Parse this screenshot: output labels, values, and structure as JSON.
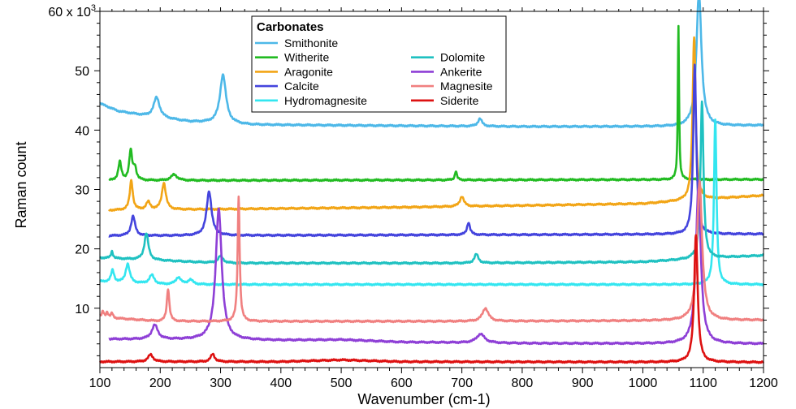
{
  "chart_data": {
    "type": "line",
    "title": "",
    "xlabel": "Wavenumber (cm-1)",
    "ylabel": "Raman count",
    "xlim": [
      100,
      1200
    ],
    "ylim": [
      0,
      60000
    ],
    "x_ticks": [
      100,
      200,
      300,
      400,
      500,
      600,
      700,
      800,
      900,
      1000,
      1100,
      1200
    ],
    "y_ticks": [
      {
        "value": 10000,
        "label": "10"
      },
      {
        "value": 20000,
        "label": "20"
      },
      {
        "value": 30000,
        "label": "30"
      },
      {
        "value": 40000,
        "label": "40"
      },
      {
        "value": 50000,
        "label": "50"
      },
      {
        "value": 60000,
        "label": "60 x 10",
        "sup": "3"
      }
    ],
    "grid": false,
    "legend": {
      "title": "Carbonates",
      "placement": "top-center"
    },
    "series": [
      {
        "name": "Smithonite",
        "color": "#4db8e8",
        "xmin": 100,
        "xmax": 1200,
        "baseline": [
          [
            100,
            44500
          ],
          [
            130,
            43200
          ],
          [
            180,
            42300
          ],
          [
            250,
            41400
          ],
          [
            350,
            40900
          ],
          [
            800,
            40600
          ],
          [
            1050,
            40600
          ],
          [
            1200,
            40800
          ]
        ],
        "peaks": [
          [
            194,
            3400,
            6
          ],
          [
            304,
            8200,
            6
          ],
          [
            730,
            1300,
            4
          ],
          [
            1093,
            22500,
            5
          ]
        ]
      },
      {
        "name": "Witherite",
        "color": "#22bb22",
        "xmin": 115,
        "xmax": 1200,
        "baseline": [
          [
            115,
            31500
          ],
          [
            1200,
            31700
          ]
        ],
        "peaks": [
          [
            133,
            3100,
            3
          ],
          [
            151,
            4900,
            3
          ],
          [
            158,
            2000,
            3
          ],
          [
            223,
            1000,
            6
          ],
          [
            690,
            1500,
            2
          ],
          [
            1059,
            26000,
            1.2
          ]
        ]
      },
      {
        "name": "Aragonite",
        "color": "#f2a516",
        "xmin": 115,
        "xmax": 1200,
        "baseline": [
          [
            115,
            26500
          ],
          [
            600,
            27000
          ],
          [
            1000,
            27600
          ],
          [
            1200,
            29000
          ]
        ],
        "peaks": [
          [
            152,
            5000,
            3
          ],
          [
            180,
            1300,
            4
          ],
          [
            206,
            4500,
            4
          ],
          [
            700,
            1700,
            4
          ],
          [
            1085,
            27500,
            3
          ]
        ]
      },
      {
        "name": "Calcite",
        "color": "#4444dd",
        "xmin": 115,
        "xmax": 1200,
        "baseline": [
          [
            115,
            22200
          ],
          [
            1200,
            22500
          ]
        ],
        "peaks": [
          [
            155,
            3300,
            4
          ],
          [
            281,
            7400,
            5
          ],
          [
            711,
            2100,
            3
          ],
          [
            1086,
            28500,
            3
          ]
        ]
      },
      {
        "name": "Hydromagnesite",
        "color": "#33e6f0",
        "xmin": 100,
        "xmax": 1200,
        "baseline": [
          [
            100,
            14500
          ],
          [
            200,
            14000
          ],
          [
            1000,
            14000
          ],
          [
            1200,
            14000
          ]
        ],
        "peaks": [
          [
            121,
            2000,
            3
          ],
          [
            146,
            3200,
            4
          ],
          [
            186,
            1500,
            5
          ],
          [
            230,
            1200,
            5
          ],
          [
            250,
            800,
            5
          ],
          [
            1120,
            27800,
            2.5
          ]
        ]
      },
      {
        "name": "Dolomite",
        "color": "#1fc1c1",
        "xmin": 100,
        "xmax": 1200,
        "baseline": [
          [
            100,
            18500
          ],
          [
            300,
            17600
          ],
          [
            700,
            17600
          ],
          [
            1000,
            17800
          ],
          [
            1200,
            18900
          ]
        ],
        "peaks": [
          [
            120,
            1200,
            2
          ],
          [
            177,
            4500,
            4
          ],
          [
            300,
            1200,
            5
          ],
          [
            724,
            1500,
            4
          ],
          [
            1098,
            26500,
            3
          ]
        ]
      },
      {
        "name": "Ankerite",
        "color": "#8e3fd6",
        "xmin": 115,
        "xmax": 1200,
        "baseline": [
          [
            115,
            4800
          ],
          [
            400,
            4600
          ],
          [
            500,
            4700
          ],
          [
            600,
            4300
          ],
          [
            800,
            4100
          ],
          [
            1200,
            4000
          ]
        ],
        "peaks": [
          [
            191,
            2400,
            6
          ],
          [
            297,
            22000,
            6
          ],
          [
            731,
            1500,
            8
          ],
          [
            1092,
            26000,
            5
          ]
        ]
      },
      {
        "name": "Magnesite",
        "color": "#f08080",
        "xmin": 100,
        "xmax": 1200,
        "baseline": [
          [
            100,
            8500
          ],
          [
            200,
            7800
          ],
          [
            700,
            7800
          ],
          [
            1000,
            7900
          ],
          [
            1200,
            8000
          ]
        ],
        "peaks": [
          [
            105,
            1000,
            2
          ],
          [
            112,
            900,
            2
          ],
          [
            120,
            800,
            2
          ],
          [
            213,
            5500,
            2.5
          ],
          [
            330,
            21000,
            2
          ],
          [
            739,
            2200,
            6
          ],
          [
            1094,
            23500,
            5
          ]
        ]
      },
      {
        "name": "Siderite",
        "color": "#dd1111",
        "xmin": 100,
        "xmax": 1200,
        "baseline": [
          [
            100,
            1000
          ],
          [
            400,
            1000
          ],
          [
            500,
            1300
          ],
          [
            600,
            1000
          ],
          [
            1200,
            900
          ]
        ],
        "peaks": [
          [
            184,
            1200,
            5
          ],
          [
            287,
            1300,
            4
          ],
          [
            1088,
            21500,
            3.5
          ]
        ]
      }
    ]
  }
}
